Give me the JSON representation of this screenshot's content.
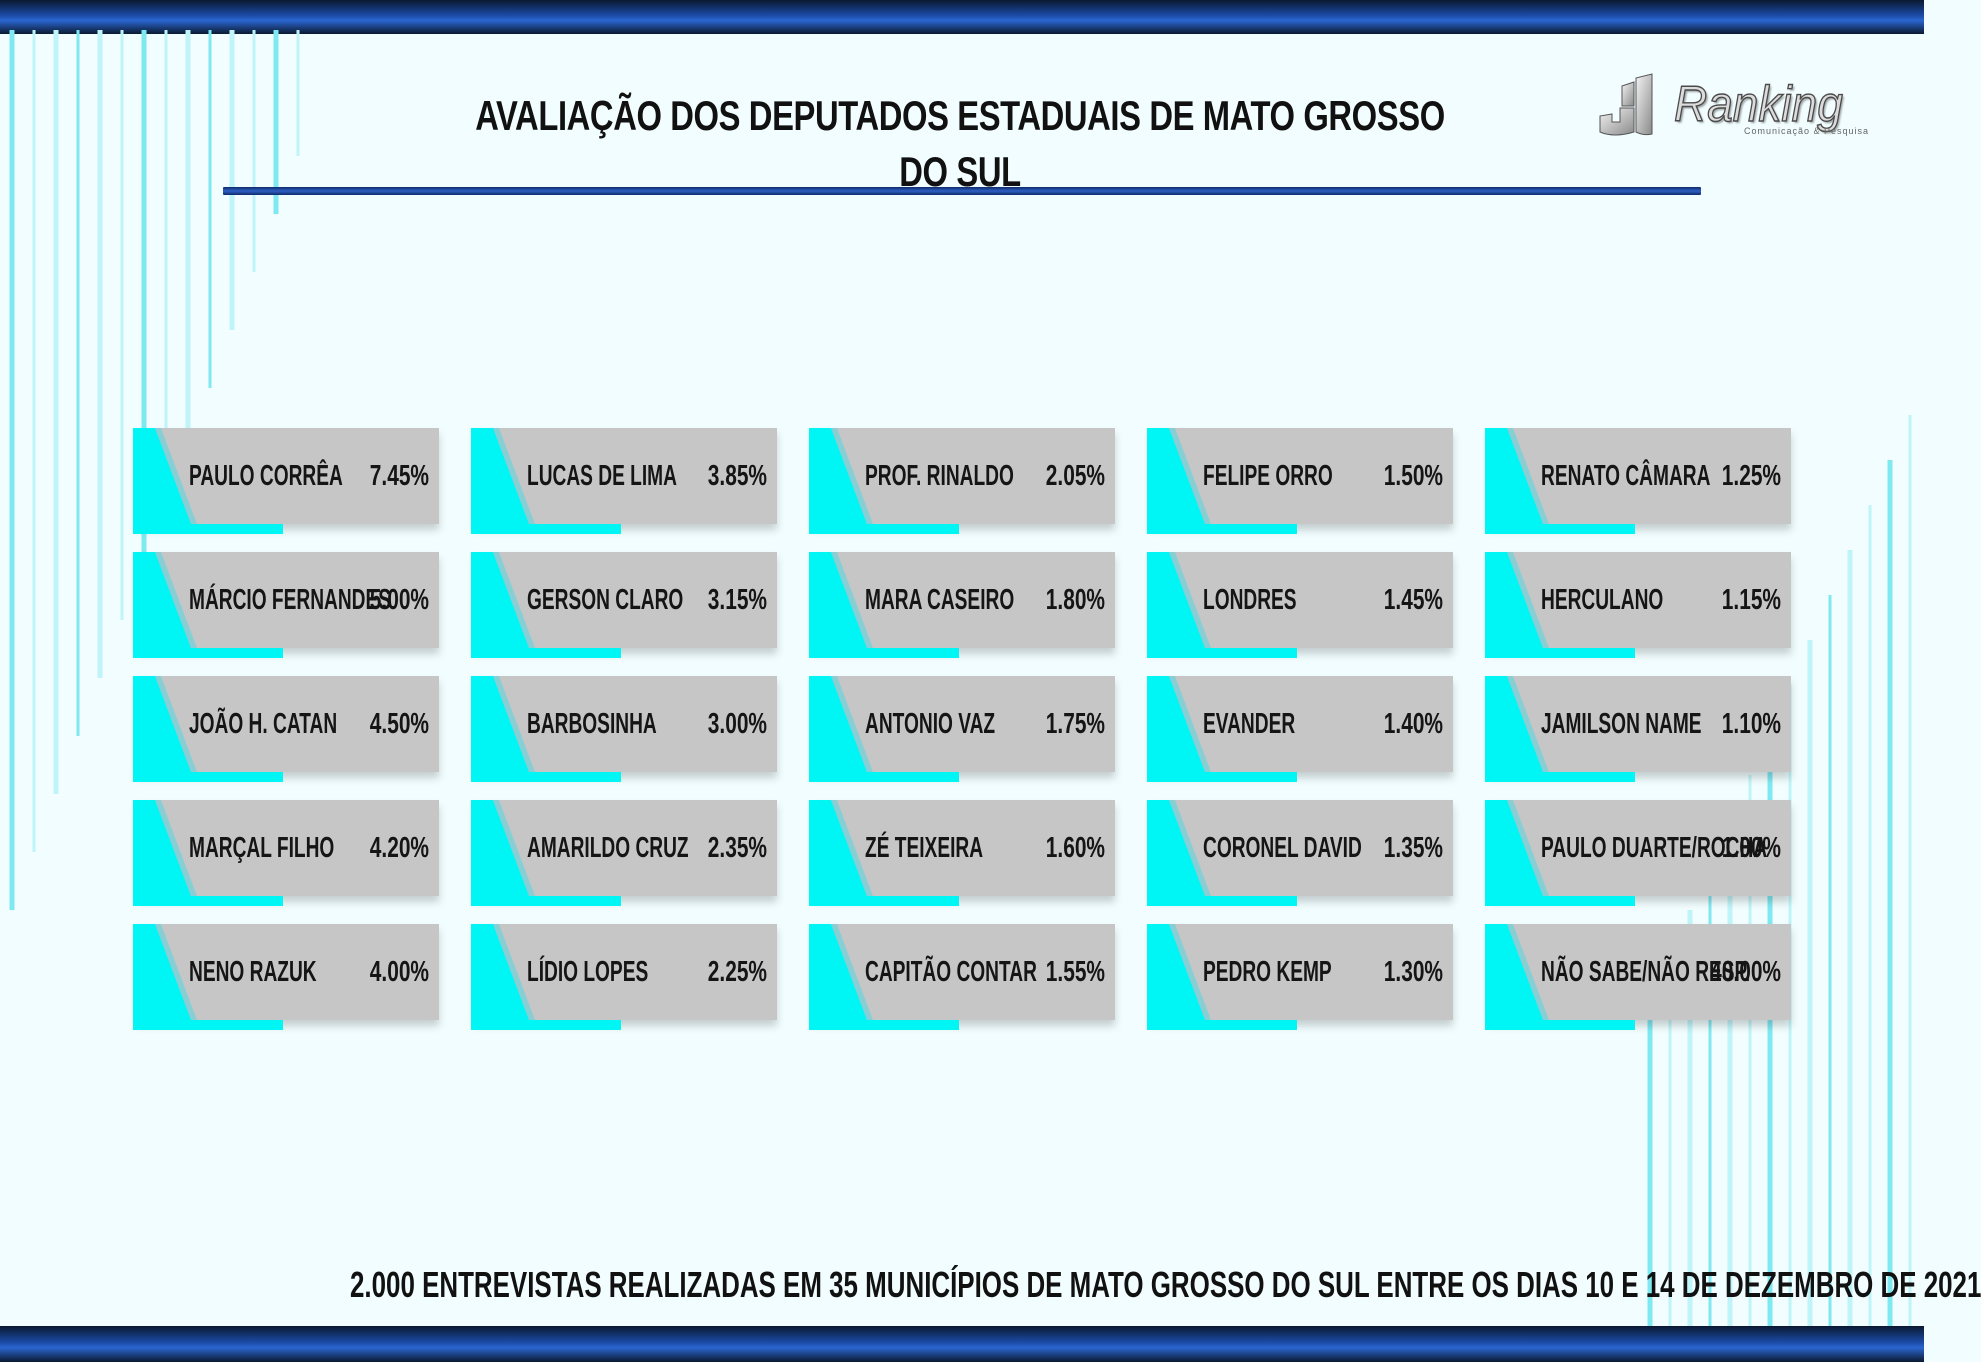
{
  "title": "AVALIAÇÃO DOS DEPUTADOS ESTADUAIS DE MATO GROSSO DO SUL",
  "logo": {
    "word": "Ranking",
    "subtitle": "Comunicação & Pesquisa"
  },
  "colors": {
    "accent": "#00f5f5",
    "card": "#c6c6c6",
    "band": "#1b4aa6",
    "background": "#f1fdfe"
  },
  "footer": "2.000 ENTREVISTAS REALIZADAS EM 35 MUNICÍPIOS DE MATO GROSSO DO SUL ENTRE OS DIAS 10 E 14 DE DEZEMBRO DE 2021",
  "chart_data": {
    "type": "table",
    "categories": [
      "PAULO CORRÊA",
      "MÁRCIO FERNANDES",
      "JOÃO H. CATAN",
      "MARÇAL FILHO",
      "NENO RAZUK",
      "LUCAS DE LIMA",
      "GERSON CLARO",
      "BARBOSINHA",
      "AMARILDO CRUZ",
      "LÍDIO LOPES",
      "PROF. RINALDO",
      "MARA CASEIRO",
      "ANTONIO VAZ",
      "ZÉ TEIXEIRA",
      "CAPITÃO CONTAR",
      "FELIPE ORRO",
      "LONDRES",
      "EVANDER",
      "CORONEL DAVID",
      "PEDRO KEMP",
      "RENATO CÂMARA",
      "HERCULANO",
      "JAMILSON NAME",
      "PAULO DUARTE/ROCHA",
      "NÃO SABE/NÃO RESP."
    ],
    "values": [
      7.45,
      5.0,
      4.5,
      4.2,
      4.0,
      3.85,
      3.15,
      3.0,
      2.35,
      2.25,
      2.05,
      1.8,
      1.75,
      1.6,
      1.55,
      1.5,
      1.45,
      1.4,
      1.35,
      1.3,
      1.25,
      1.15,
      1.1,
      1.0,
      40.0
    ],
    "labels": [
      "7.45%",
      "5.00%",
      "4.50%",
      "4.20%",
      "4.00%",
      "3.85%",
      "3.15%",
      "3.00%",
      "2.35%",
      "2.25%",
      "2.05%",
      "1.80%",
      "1.75%",
      "1.60%",
      "1.55%",
      "1.50%",
      "1.45%",
      "1.40%",
      "1.35%",
      "1.30%",
      "1.25%",
      "1.15%",
      "1.10%",
      "1.00%",
      "40.00%"
    ],
    "unit": "%",
    "columns": 5,
    "rows": 5
  }
}
